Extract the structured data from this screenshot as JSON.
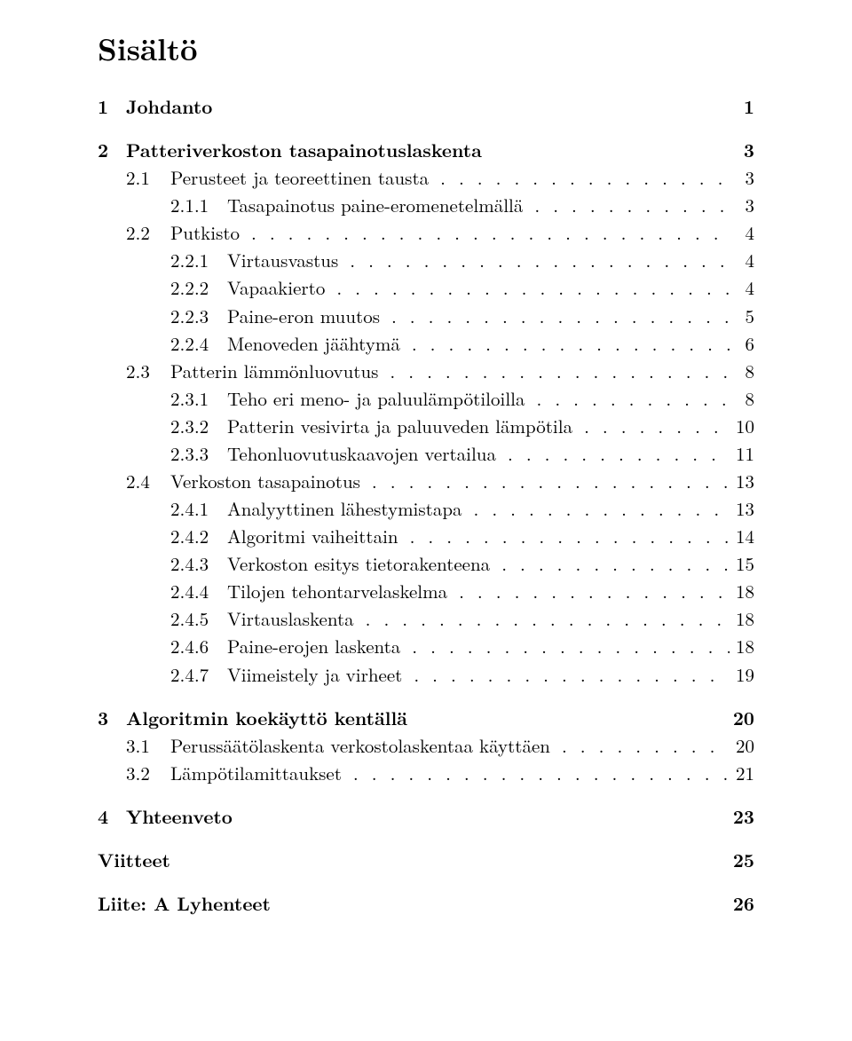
{
  "title": "Sisältö",
  "chapters": [
    {
      "num": "1",
      "label": "Johdanto",
      "page": "1",
      "sections": []
    },
    {
      "num": "2",
      "label": "Patteriverkoston tasapainotuslaskenta",
      "page": "3",
      "sections": [
        {
          "num": "2.1",
          "label": "Perusteet ja teoreettinen tausta",
          "page": "3",
          "subs": [
            {
              "num": "2.1.1",
              "label": "Tasapainotus paine-eromenetelmällä",
              "page": "3"
            }
          ]
        },
        {
          "num": "2.2",
          "label": "Putkisto",
          "page": "4",
          "subs": [
            {
              "num": "2.2.1",
              "label": "Virtausvastus",
              "page": "4"
            },
            {
              "num": "2.2.2",
              "label": "Vapaakierto",
              "page": "4"
            },
            {
              "num": "2.2.3",
              "label": "Paine-eron muutos",
              "page": "5"
            },
            {
              "num": "2.2.4",
              "label": "Menoveden jäähtymä",
              "page": "6"
            }
          ]
        },
        {
          "num": "2.3",
          "label": "Patterin lämmönluovutus",
          "page": "8",
          "subs": [
            {
              "num": "2.3.1",
              "label": "Teho eri meno- ja paluulämpötiloilla",
              "page": "8"
            },
            {
              "num": "2.3.2",
              "label": "Patterin vesivirta ja paluuveden lämpötila",
              "page": "10"
            },
            {
              "num": "2.3.3",
              "label": "Tehonluovutuskaavojen vertailua",
              "page": "11"
            }
          ]
        },
        {
          "num": "2.4",
          "label": "Verkoston tasapainotus",
          "page": "13",
          "subs": [
            {
              "num": "2.4.1",
              "label": "Analyyttinen lähestymistapa",
              "page": "13"
            },
            {
              "num": "2.4.2",
              "label": "Algoritmi vaiheittain",
              "page": "14"
            },
            {
              "num": "2.4.3",
              "label": "Verkoston esitys tietorakenteena",
              "page": "15"
            },
            {
              "num": "2.4.4",
              "label": "Tilojen tehontarvelaskelma",
              "page": "18"
            },
            {
              "num": "2.4.5",
              "label": "Virtauslaskenta",
              "page": "18"
            },
            {
              "num": "2.4.6",
              "label": "Paine-erojen laskenta",
              "page": "18"
            },
            {
              "num": "2.4.7",
              "label": "Viimeistely ja virheet",
              "page": "19"
            }
          ]
        }
      ]
    },
    {
      "num": "3",
      "label": "Algoritmin koekäyttö kentällä",
      "page": "20",
      "sections": [
        {
          "num": "3.1",
          "label": "Perussäätölaskenta verkostolaskentaa käyttäen",
          "page": "20",
          "subs": []
        },
        {
          "num": "3.2",
          "label": "Lämpötilamittaukset",
          "page": "21",
          "subs": []
        }
      ]
    },
    {
      "num": "4",
      "label": "Yhteenveto",
      "page": "23",
      "sections": []
    }
  ],
  "backmatter": [
    {
      "label": "Viitteet",
      "page": "25"
    },
    {
      "label": "Liite: A  Lyhenteet",
      "page": "26"
    }
  ],
  "dot_fill": ". . . . . . . . . . . . . . . . . . . . . . . . . . . . . . . . . . . . . . . . . . . . . . . . . . . . . . . . . . . ."
}
